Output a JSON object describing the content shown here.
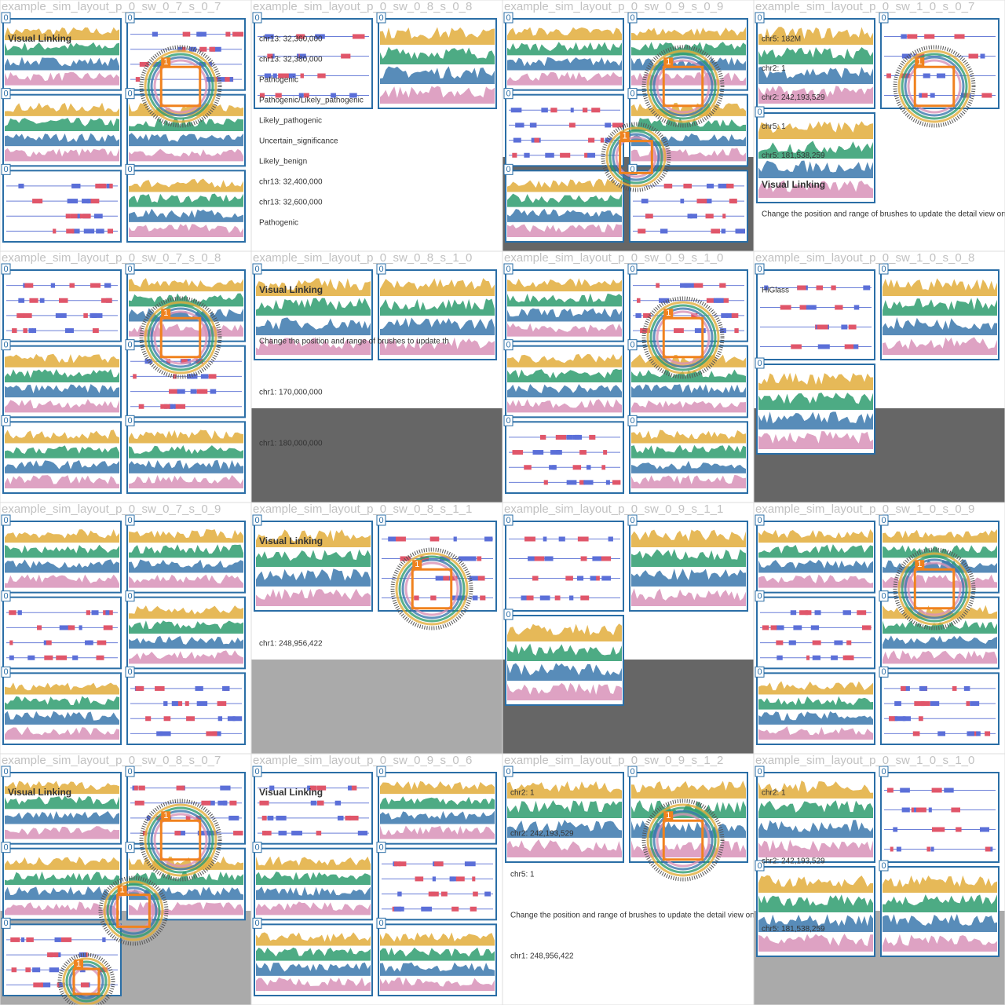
{
  "tiles": [
    {
      "title": "example_sim_layout_p_0_sw_0_7_s_0_7",
      "badges": [
        "0",
        "0",
        "0",
        "0",
        "0",
        "0",
        "1"
      ],
      "labels": [
        "Visual Linking"
      ]
    },
    {
      "title": "example_sim_layout_p_0_sw_0_8_s_0_8",
      "badges": [
        "0",
        "0"
      ],
      "labels": [
        "chr13: 32,360,000",
        "chr13: 32,380,000",
        "Pathogenic",
        "Pathogenic/Likely_pathogenic",
        "Likely_pathogenic",
        "Uncertain_significance",
        "Likely_benign",
        "chr13: 32,400,000",
        "chr13: 32,600,000",
        "Pathogenic"
      ]
    },
    {
      "title": "example_sim_layout_p_0_sw_0_9_s_0_9",
      "badges": [
        "0",
        "0",
        "0",
        "0",
        "0",
        "0",
        "1",
        "1"
      ],
      "labels": []
    },
    {
      "title": "example_sim_layout_p_0_sw_1_0_s_0_7",
      "badges": [
        "0",
        "0",
        "0",
        "1"
      ],
      "labels": [
        "chr5: 182M",
        "chr2: 1",
        "chr2: 242,193,529",
        "chr5: 1",
        "chr5: 181,538,259",
        "Visual Linking",
        "Change the position and range of brushes to update the detail view on the bottom"
      ]
    },
    {
      "title": "example_sim_layout_p_0_sw_0_7_s_0_8",
      "badges": [
        "0",
        "0",
        "0",
        "0",
        "0",
        "0",
        "1"
      ],
      "labels": []
    },
    {
      "title": "example_sim_layout_p_0_sw_0_8_s_1_0",
      "badges": [
        "0",
        "0"
      ],
      "labels": [
        "Visual Linking",
        "Change the position and range of brushes to update th",
        "chr1: 170,000,000",
        "chr1: 180,000,000"
      ]
    },
    {
      "title": "example_sim_layout_p_0_sw_0_9_s_1_0",
      "badges": [
        "0",
        "0",
        "0",
        "0",
        "0",
        "0",
        "1"
      ],
      "labels": []
    },
    {
      "title": "example_sim_layout_p_0_sw_1_0_s_0_8",
      "badges": [
        "0",
        "0",
        "0"
      ],
      "labels": [
        "HiGlass"
      ]
    },
    {
      "title": "example_sim_layout_p_0_sw_0_7_s_0_9",
      "badges": [
        "0",
        "0",
        "0",
        "0",
        "0",
        "0"
      ],
      "labels": []
    },
    {
      "title": "example_sim_layout_p_0_sw_0_8_s_1_1",
      "badges": [
        "0",
        "0",
        "1"
      ],
      "labels": [
        "Visual Linking",
        "chr1: 248,956,422"
      ]
    },
    {
      "title": "example_sim_layout_p_0_sw_0_9_s_1_1",
      "badges": [
        "0",
        "0",
        "0"
      ],
      "labels": []
    },
    {
      "title": "example_sim_layout_p_0_sw_1_0_s_0_9",
      "badges": [
        "0",
        "0",
        "0",
        "0",
        "0",
        "0",
        "1"
      ],
      "labels": []
    },
    {
      "title": "example_sim_layout_p_0_sw_0_8_s_0_7",
      "badges": [
        "0",
        "0",
        "0",
        "0",
        "0",
        "1",
        "1",
        "1"
      ],
      "labels": [
        "Visual Linking"
      ]
    },
    {
      "title": "example_sim_layout_p_0_sw_0_9_s_0_6",
      "badges": [
        "0",
        "0",
        "0",
        "0",
        "0",
        "0"
      ],
      "labels": [
        "Visual Linking"
      ]
    },
    {
      "title": "example_sim_layout_p_0_sw_0_9_s_1_2",
      "badges": [
        "0",
        "0",
        "1"
      ],
      "labels": [
        "chr2: 1",
        "chr2: 242,193,529",
        "chr5: 1",
        "Change the position and range of brushes to update the detail view on the bottom",
        "chr1: 248,956,422"
      ]
    },
    {
      "title": "example_sim_layout_p_0_sw_1_0_s_1_0",
      "badges": [
        "0",
        "0",
        "0",
        "0"
      ],
      "labels": [
        "chr2: 1",
        "chr2: 242,193,529",
        "chr5: 181,538,259"
      ]
    }
  ]
}
